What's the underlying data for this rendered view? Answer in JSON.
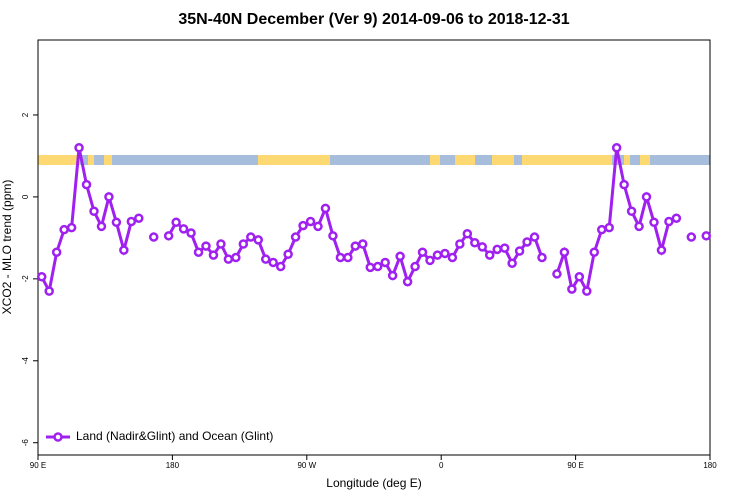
{
  "chart_data": {
    "type": "line",
    "title": "35N-40N December (Ver 9)   2014-09-06 to 2018-12-31",
    "x_label": "Longitude (deg E)",
    "y_label": "XCO2 - MLO trend (ppm)",
    "x": [
      92.5,
      97.5,
      102.5,
      107.5,
      112.5,
      117.5,
      122.5,
      127.5,
      132.5,
      137.5,
      142.5,
      147.5,
      152.5,
      157.5,
      162.5,
      167.5,
      172.5,
      177.5,
      182.5,
      187.5,
      192.5,
      197.5,
      202.5,
      207.5,
      212.5,
      217.5,
      222.5,
      227.5,
      232.5,
      237.5,
      242.5,
      247.5,
      252.5,
      257.5,
      262.5,
      267.5,
      272.5,
      277.5,
      282.5,
      287.5,
      292.5,
      297.5,
      302.5,
      307.5,
      312.5,
      317.5,
      322.5,
      327.5,
      332.5,
      337.5,
      342.5,
      347.5,
      352.5,
      357.5,
      362.5,
      367.5,
      372.5,
      377.5,
      382.5,
      387.5,
      392.5,
      397.5,
      402.5,
      407.5,
      412.5,
      417.5,
      422.5,
      427.5,
      432.5,
      437.5,
      442.5,
      447.5,
      452.5,
      457.5,
      462.5,
      467.5,
      472.5,
      477.5,
      482.5,
      487.5,
      492.5,
      497.5,
      502.5,
      507.5,
      512.5,
      517.5,
      522.5,
      527.5,
      532.5,
      537.5
    ],
    "series": [
      {
        "name": "Land (Nadir&Glint) and Ocean (Glint)",
        "color": "#a020f0",
        "values": [
          -1.95,
          -2.3,
          -1.35,
          -0.8,
          -0.75,
          1.2,
          0.3,
          -0.35,
          -0.72,
          0,
          -0.62,
          -1.3,
          -0.6,
          -0.52,
          null,
          -0.98,
          null,
          -0.95,
          -0.62,
          -0.78,
          -0.88,
          -1.35,
          -1.2,
          -1.42,
          -1.15,
          -1.52,
          -1.48,
          -1.15,
          -0.98,
          -1.05,
          -1.52,
          -1.6,
          -1.7,
          -1.4,
          -0.98,
          -0.7,
          -0.6,
          -0.72,
          -0.28,
          -0.95,
          -1.48,
          -1.48,
          -1.2,
          -1.15,
          -1.72,
          -1.7,
          -1.6,
          -1.92,
          -1.45,
          -2.07,
          -1.7,
          -1.35,
          -1.55,
          -1.42,
          -1.38,
          -1.48,
          -1.15,
          -0.9,
          -1.12,
          -1.22,
          -1.42,
          -1.28,
          -1.25,
          -1.62,
          -1.32,
          -1.1,
          -0.98,
          -1.48,
          null,
          -1.88,
          -1.35,
          -2.25,
          -1.95,
          -2.3,
          -1.35,
          -0.8,
          -0.75,
          1.2,
          0.3,
          -0.35,
          -0.72,
          0,
          -0.62,
          -1.3,
          -0.6,
          -0.52,
          null,
          -0.98,
          null,
          -0.95
        ]
      }
    ],
    "xlim": [
      90,
      540
    ],
    "xticks": [
      {
        "value": 90,
        "label": "90 E"
      },
      {
        "value": 180,
        "label": "180"
      },
      {
        "value": 270,
        "label": "90 W"
      },
      {
        "value": 360,
        "label": "0"
      },
      {
        "value": 450,
        "label": "90 E"
      },
      {
        "value": 540,
        "label": "180"
      }
    ],
    "ylim": [
      -6.3,
      3.83
    ],
    "yticks": [
      -6,
      -4,
      -2,
      0,
      2
    ],
    "legend": "bottomleft"
  }
}
